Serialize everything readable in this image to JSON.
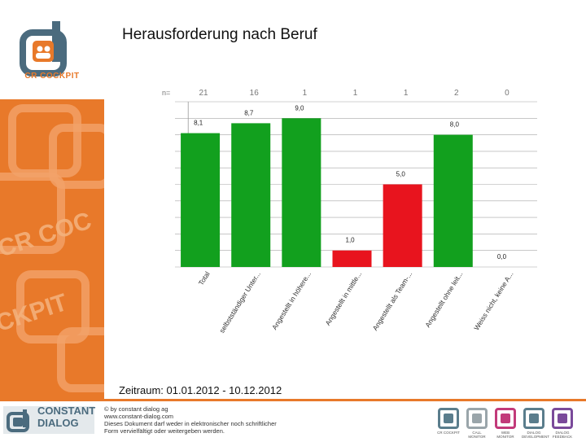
{
  "title": "Herausforderung nach Beruf",
  "date_range": "Zeitraum: 01.01.2012 - 10.12.2012",
  "logo_caption": "CR COCKPIT",
  "sidebar_watermark": [
    "CR COC",
    "CKPIT"
  ],
  "footer": {
    "brand_line1": "CONSTANT",
    "brand_line2": "DIALOG",
    "lines": [
      "© by constant dialog ag",
      "www.constant-dialog.com",
      "Dieses Dokument darf weder in elektronischer noch schriftlicher",
      "Form vervielfältigt oder weitergeben werden."
    ],
    "icons": [
      {
        "color": "#5a7d8c",
        "label": "CR COCKPIT"
      },
      {
        "color": "#9aa5aa",
        "label": "CALL MONITOR"
      },
      {
        "color": "#c23a7a",
        "label": "WEB MONITOR"
      },
      {
        "color": "#5a7d8c",
        "label": "DIALOG DEVELOPMENT"
      },
      {
        "color": "#7a4a9a",
        "label": "DIALOG FEEDBACK"
      }
    ]
  },
  "colors": {
    "accent": "#e8792a",
    "green": "#12a01e",
    "red": "#e8141e",
    "brand": "#4b6b7e"
  },
  "chart_data": {
    "type": "bar",
    "n_label": "n=",
    "categories": [
      "Total",
      "selbstständiger Unter...",
      "Angestellt in höhere...",
      "Angestellt in mittle...",
      "Angestellt als Team-...",
      "Angestellt ohne leit...",
      "Weiss nicht, keine A..."
    ],
    "values": [
      8.1,
      8.7,
      9.0,
      1.0,
      5.0,
      8.0,
      0.0
    ],
    "value_labels": [
      "8,1",
      "8,7",
      "9,0",
      "1,0",
      "5,0",
      "8,0",
      "0,0"
    ],
    "n": [
      "21",
      "16",
      "1",
      "1",
      "1",
      "2",
      "0"
    ],
    "bar_colors": [
      "#12a01e",
      "#12a01e",
      "#12a01e",
      "#e8141e",
      "#e8141e",
      "#12a01e",
      "#12a01e"
    ],
    "ylim": [
      0,
      10
    ],
    "grid": true
  }
}
